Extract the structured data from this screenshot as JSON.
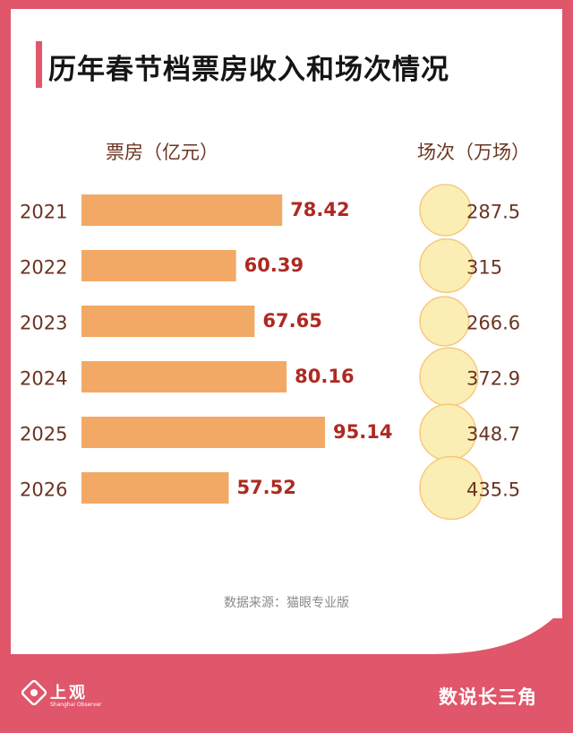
{
  "page": {
    "title": "历年春节档票房收入和场次情况",
    "source": "数据来源：猫眼专业版",
    "logo_text": "上观",
    "logo_sub": "Shanghai Observer",
    "brand": "数说长三角"
  },
  "colors": {
    "background": "#e0566b",
    "bar": "#f3a966",
    "value_label": "#ad2a22",
    "bubble_fill": "#fbeeb0",
    "bubble_stroke": "#f5c777",
    "text_brown": "#6b3422"
  },
  "chart_data": {
    "type": "bar",
    "orientation": "horizontal",
    "title": "历年春节档票房收入和场次情况",
    "categories": [
      "2021",
      "2022",
      "2023",
      "2024",
      "2025",
      "2026"
    ],
    "series": [
      {
        "name": "票房（亿元）",
        "values": [
          78.42,
          60.39,
          67.65,
          80.16,
          95.14,
          57.52
        ],
        "labels": [
          "78.42",
          "60.39",
          "67.65",
          "80.16",
          "95.14",
          "57.52"
        ]
      },
      {
        "name": "场次（万场）",
        "mark": "bubble",
        "values": [
          287.5,
          315,
          266.6,
          372.9,
          348.7,
          435.5
        ],
        "labels": [
          "287.5",
          "315",
          "266.6",
          "372.9",
          "348.7",
          "435.5"
        ]
      }
    ],
    "xlim": [
      0,
      100
    ]
  }
}
